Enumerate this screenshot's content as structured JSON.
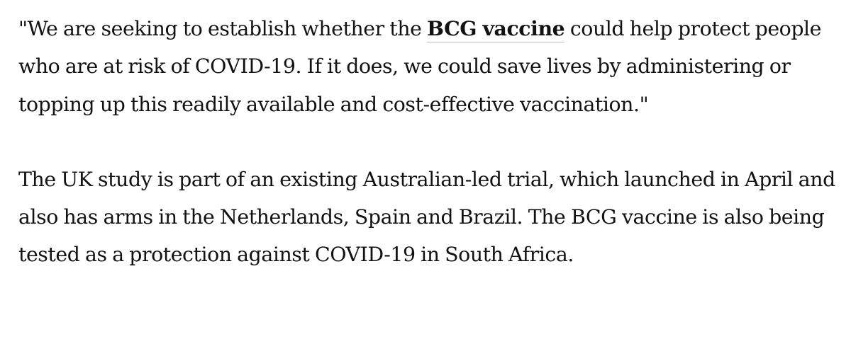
{
  "article": {
    "quote": {
      "before_link": "\"We are seeking to establish whether the ",
      "link_text": "BCG vaccine",
      "after_link": " could help protect people who are at risk of COVID-19. If it does, we could save lives by administering or topping up this readily available and cost-effective vaccination.\""
    },
    "paragraph_2": "The UK study is part of an existing Australian-led trial, which launched in April and also has arms in the Netherlands, Spain and Brazil. The BCG vaccine is also being tested as a protection against COVID-19 in South Africa."
  },
  "colors": {
    "text": "#121212",
    "link_underline": "#bdbdbd",
    "background": "#ffffff"
  }
}
